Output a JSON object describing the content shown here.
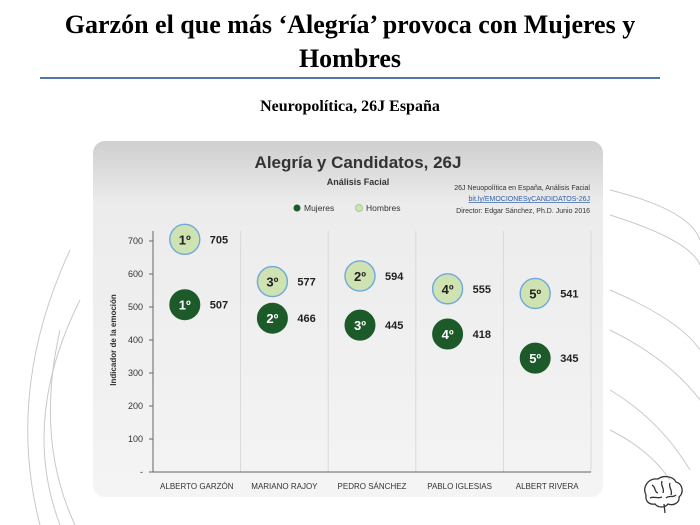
{
  "slide": {
    "title": "Garzón el que más ‘Alegría’ provoca con Mujeres y Hombres",
    "subtitle": "Neuropolítica, 26J España"
  },
  "colors": {
    "mujeres": "#1d5a2a",
    "hombres": "#cfe2b2",
    "hombres_border": "#6fa8dc",
    "rule": "#4f78a8"
  },
  "icons": [
    "brain-logo-icon"
  ],
  "chart_data": {
    "type": "scatter",
    "title": "Alegría y Candidatos, 26J",
    "subtitle": "Análisis Facial",
    "ylabel": "Indicador de la emoción",
    "xlabel": "",
    "categories": [
      "ALBERTO GARZÓN",
      "MARIANO RAJOY",
      "PEDRO SÁNCHEZ",
      "PABLO IGLESIAS",
      "ALBERT RIVERA"
    ],
    "ylim": [
      0,
      700
    ],
    "yticks": [
      "-",
      "100",
      "200",
      "300",
      "400",
      "500",
      "600",
      "700"
    ],
    "grid": true,
    "legend_position": "top",
    "series": [
      {
        "name": "Mujeres",
        "values": [
          507,
          466,
          445,
          418,
          345
        ],
        "ranks": [
          "1º",
          "2º",
          "3º",
          "4º",
          "5º"
        ]
      },
      {
        "name": "Hombres",
        "values": [
          705,
          577,
          594,
          555,
          541
        ],
        "ranks": [
          "1º",
          "3º",
          "2º",
          "4º",
          "5º"
        ]
      }
    ],
    "source_note": [
      "26J Neuopolítica en España, Análisis Facial",
      "bit.ly/EMOCIONESyCANDIDATOS-26J",
      "Director: Edgar Sánchez, Ph.D.   Junio 2016"
    ]
  }
}
